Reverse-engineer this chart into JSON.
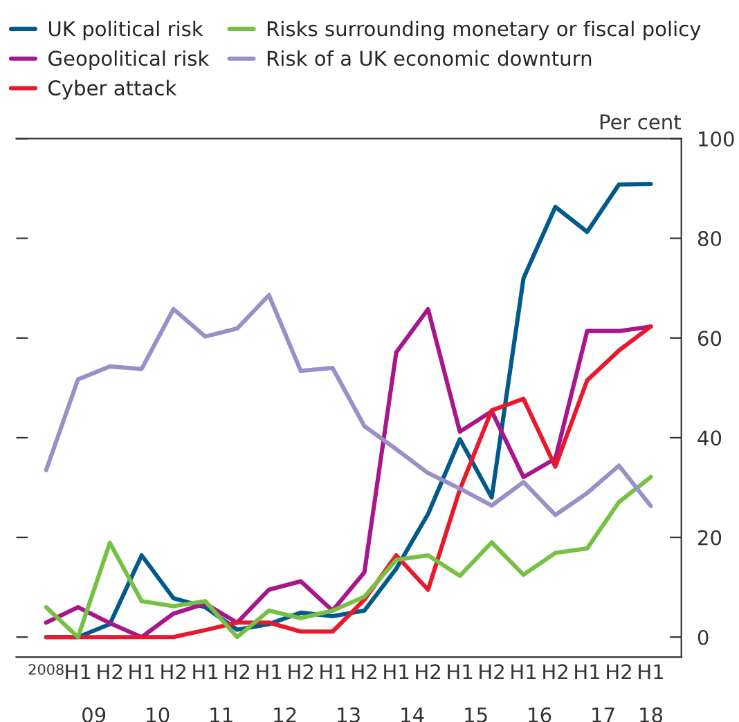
{
  "chart_data": {
    "type": "line",
    "ylabel": "Per cent",
    "legend": "top",
    "grid": false,
    "line_style": "solid",
    "marker": "none",
    "categories": [
      "2008",
      "H1",
      "H2",
      "H1",
      "H2",
      "H1",
      "H2",
      "H1",
      "H2",
      "H1",
      "H2",
      "H1",
      "H2",
      "H1",
      "H2",
      "H1",
      "H2",
      "H1",
      "H2",
      "H1"
    ],
    "annotations": [
      "09",
      "10",
      "11",
      "12",
      "13",
      "14",
      "15",
      "16",
      "17",
      "18"
    ],
    "ylim": [
      -4,
      100
    ],
    "yticks": [
      0,
      20,
      40,
      60,
      80,
      100
    ],
    "series": [
      {
        "name": "UK political risk",
        "color": "#005a8c",
        "values": [
          0,
          0,
          2.6,
          16.4,
          7.8,
          6.0,
          1.5,
          2.6,
          4.9,
          4.2,
          5.3,
          13.7,
          24.7,
          39.7,
          28,
          72,
          86.3,
          81.3,
          90.8,
          90.9
        ]
      },
      {
        "name": "Geopolitical risk",
        "color": "#a8168c",
        "values": [
          2.9,
          6.0,
          2.8,
          0,
          4.7,
          6.7,
          2.9,
          9.5,
          11.2,
          5.3,
          13.0,
          57.1,
          65.8,
          41.2,
          45.3,
          32.1,
          35.8,
          61.4,
          61.4,
          62.3
        ]
      },
      {
        "name": "Cyber attack",
        "color": "#e8192c",
        "values": [
          0,
          0,
          0,
          0,
          0,
          1.4,
          2.9,
          2.9,
          1.1,
          1.1,
          7.5,
          16.4,
          9.5,
          29.6,
          45.5,
          47.8,
          34.2,
          51.5,
          57.5,
          62.3
        ]
      },
      {
        "name": "Risks surrounding monetary or fiscal policy",
        "color": "#76c043",
        "values": [
          6.0,
          0,
          18.9,
          7.2,
          6.2,
          7.2,
          0,
          5.3,
          3.8,
          5.3,
          8.1,
          15.5,
          16.4,
          12.3,
          19.0,
          12.5,
          16.9,
          17.8,
          27.1,
          32.1
        ]
      },
      {
        "name": "Risk of a UK economic downturn",
        "color": "#9b8fc8",
        "values": [
          33.5,
          51.7,
          54.3,
          53.8,
          65.8,
          60.3,
          61.9,
          68.6,
          53.4,
          54.0,
          42.3,
          37.7,
          32.9,
          29.8,
          26.4,
          31.1,
          24.5,
          28.9,
          34.4,
          26.3
        ]
      }
    ]
  }
}
